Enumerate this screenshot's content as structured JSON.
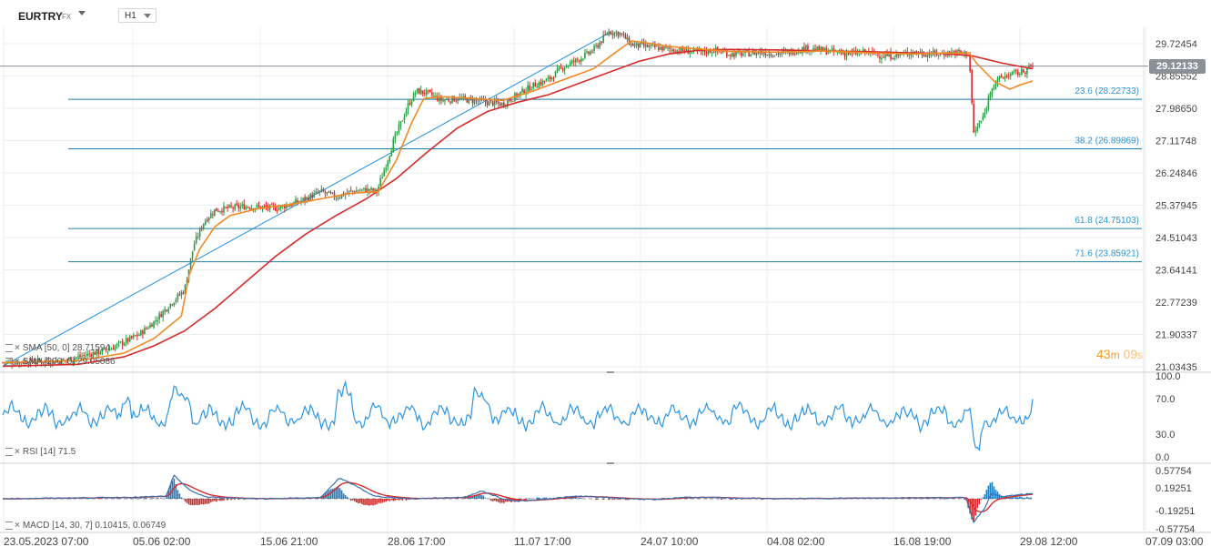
{
  "header": {
    "symbol": "EURTRY",
    "symbol_type": "FX",
    "timeframe": "H1"
  },
  "price_axis": {
    "ticks": [
      "29.72454",
      "28.85552",
      "27.98650",
      "27.11748",
      "26.24846",
      "25.37945",
      "24.51043",
      "23.64141",
      "22.77239",
      "21.90337",
      "21.03435"
    ],
    "current_price": "29.12133"
  },
  "time_axis": {
    "labels": [
      "23.05.2023 07:00",
      "05.06 02:00",
      "15.06 21:00",
      "28.06 17:00",
      "11.07 17:00",
      "24.07 10:00",
      "04.08 02:00",
      "16.08 19:00",
      "29.08 12:00",
      "07.09 03:00"
    ]
  },
  "countdown": {
    "minutes": "43",
    "min_unit": "m",
    "seconds": "09",
    "sec_unit": "s"
  },
  "legend": {
    "sma50": "SMA [50, 0] 28.71594",
    "sma200": "SMA [200, 0] 29.05086",
    "rsi": "RSI [14] 71.5",
    "macd": "MACD [14, 30, 7] 0.10415, 0.06749"
  },
  "rsi_axis": {
    "ticks": [
      "100.0",
      "70.0",
      "30.0",
      "0.0"
    ]
  },
  "macd_axis": {
    "ticks": [
      "0.57754",
      "0.19251",
      "-0.19251",
      "-0.57754"
    ]
  },
  "colors": {
    "up_candle": "#2a9d46",
    "down_candle": "#d62b2b",
    "sma50": "#f08a24",
    "sma200": "#d62b2b",
    "trendline": "#1e90e0",
    "fib": "#1f7ea8",
    "rsi": "#2b95e6",
    "macd_line": "#3a6fb0",
    "signal_line": "#d62b2b",
    "hist_pos": "#1f7ec2",
    "hist_neg": "#d62b2b"
  },
  "chart_data": [
    {
      "type": "candlestick",
      "title": "EURTRY H1",
      "ylim": [
        21.03435,
        29.72454
      ],
      "x_labels": [
        "23.05.2023 07:00",
        "05.06 02:00",
        "15.06 21:00",
        "28.06 17:00",
        "11.07 17:00",
        "24.07 10:00",
        "04.08 02:00",
        "16.08 19:00",
        "29.08 12:00",
        "07.09 03:00"
      ],
      "close_path": [
        [
          0,
          21.15
        ],
        [
          4,
          21.2
        ],
        [
          7,
          21.5
        ],
        [
          9,
          21.9
        ],
        [
          10,
          22.25
        ],
        [
          11,
          22.7
        ],
        [
          12,
          23.1
        ],
        [
          12.6,
          24.3
        ],
        [
          13.3,
          24.95
        ],
        [
          14,
          25.25
        ],
        [
          16,
          25.35
        ],
        [
          18,
          25.3
        ],
        [
          19,
          25.4
        ],
        [
          20,
          25.55
        ],
        [
          21,
          25.75
        ],
        [
          22,
          25.6
        ],
        [
          23,
          25.75
        ],
        [
          24,
          25.8
        ],
        [
          24.7,
          25.75
        ],
        [
          25.2,
          26.35
        ],
        [
          25.8,
          27.1
        ],
        [
          26.3,
          27.6
        ],
        [
          26.8,
          28.1
        ],
        [
          27.3,
          28.45
        ],
        [
          28,
          28.4
        ],
        [
          29,
          28.2
        ],
        [
          30,
          28.25
        ],
        [
          31,
          28.2
        ],
        [
          32,
          28.15
        ],
        [
          33,
          28.1
        ],
        [
          34,
          28.35
        ],
        [
          35,
          28.6
        ],
        [
          36,
          28.75
        ],
        [
          37,
          29.1
        ],
        [
          38,
          29.3
        ],
        [
          39,
          29.55
        ],
        [
          40,
          30.05
        ],
        [
          40.8,
          30.0
        ],
        [
          41.5,
          29.7
        ],
        [
          42.5,
          29.65
        ],
        [
          43.5,
          29.6
        ],
        [
          44.5,
          29.55
        ],
        [
          46,
          29.5
        ],
        [
          47,
          29.55
        ],
        [
          48,
          29.45
        ],
        [
          49,
          29.45
        ],
        [
          50,
          29.5
        ],
        [
          51,
          29.45
        ],
        [
          52,
          29.5
        ],
        [
          53,
          29.6
        ],
        [
          54,
          29.55
        ],
        [
          55,
          29.5
        ],
        [
          56,
          29.45
        ],
        [
          57,
          29.5
        ],
        [
          58,
          29.4
        ],
        [
          59,
          29.4
        ],
        [
          60,
          29.5
        ],
        [
          61,
          29.45
        ],
        [
          62,
          29.45
        ],
        [
          62.8,
          29.5
        ],
        [
          63.8,
          29.45
        ],
        [
          64.1,
          27.3
        ],
        [
          64.8,
          27.8
        ],
        [
          65.3,
          28.6
        ],
        [
          65.9,
          28.8
        ],
        [
          66.5,
          28.9
        ],
        [
          67.2,
          28.95
        ],
        [
          68,
          29.12
        ]
      ],
      "sma50": [
        [
          0,
          21.15
        ],
        [
          5,
          21.2
        ],
        [
          8,
          21.4
        ],
        [
          10,
          21.8
        ],
        [
          11.8,
          22.4
        ],
        [
          12.3,
          23.5
        ],
        [
          13,
          24.2
        ],
        [
          14,
          24.8
        ],
        [
          15,
          25.1
        ],
        [
          17,
          25.3
        ],
        [
          19,
          25.4
        ],
        [
          21,
          25.55
        ],
        [
          23,
          25.7
        ],
        [
          24.8,
          25.75
        ],
        [
          26,
          26.6
        ],
        [
          27,
          27.6
        ],
        [
          27.8,
          28.25
        ],
        [
          29,
          28.3
        ],
        [
          31,
          28.25
        ],
        [
          33,
          28.2
        ],
        [
          35,
          28.45
        ],
        [
          37,
          28.75
        ],
        [
          39,
          29.05
        ],
        [
          40.5,
          29.5
        ],
        [
          41.5,
          29.8
        ],
        [
          42.5,
          29.75
        ],
        [
          44,
          29.65
        ],
        [
          46,
          29.58
        ],
        [
          48,
          29.52
        ],
        [
          50,
          29.5
        ],
        [
          52,
          29.5
        ],
        [
          54,
          29.53
        ],
        [
          56,
          29.5
        ],
        [
          58,
          29.47
        ],
        [
          60,
          29.45
        ],
        [
          62,
          29.47
        ],
        [
          63.8,
          29.47
        ],
        [
          64.3,
          29.2
        ],
        [
          65.5,
          28.7
        ],
        [
          66.5,
          28.5
        ],
        [
          67.2,
          28.62
        ],
        [
          68,
          28.72
        ]
      ],
      "sma200": [
        [
          0,
          21.05
        ],
        [
          5,
          21.1
        ],
        [
          8,
          21.3
        ],
        [
          10,
          21.6
        ],
        [
          12,
          22.0
        ],
        [
          14,
          22.6
        ],
        [
          16,
          23.3
        ],
        [
          18,
          24.0
        ],
        [
          20,
          24.6
        ],
        [
          22,
          25.1
        ],
        [
          24,
          25.55
        ],
        [
          26,
          26.1
        ],
        [
          28,
          26.8
        ],
        [
          30,
          27.45
        ],
        [
          32,
          27.9
        ],
        [
          34,
          28.15
        ],
        [
          36,
          28.35
        ],
        [
          38,
          28.65
        ],
        [
          40,
          28.95
        ],
        [
          42,
          29.25
        ],
        [
          44,
          29.45
        ],
        [
          46,
          29.55
        ],
        [
          48,
          29.57
        ],
        [
          50,
          29.56
        ],
        [
          52,
          29.55
        ],
        [
          54,
          29.53
        ],
        [
          56,
          29.52
        ],
        [
          58,
          29.5
        ],
        [
          60,
          29.48
        ],
        [
          62,
          29.46
        ],
        [
          64,
          29.4
        ],
        [
          66,
          29.2
        ],
        [
          68,
          29.05
        ]
      ],
      "trendline": [
        [
          0,
          21.05
        ],
        [
          40.2,
          30.05
        ]
      ],
      "fib_levels": [
        {
          "label": "23.6 (28.22733)",
          "value": 28.22733
        },
        {
          "label": "38.2 (26.89869)",
          "value": 26.89869
        },
        {
          "label": "61.8 (24.75103)",
          "value": 24.75103
        },
        {
          "label": "71.6 (23.85921)",
          "value": 23.85921
        }
      ]
    },
    {
      "type": "line",
      "title": "RSI [14]",
      "ylim": [
        0,
        100
      ],
      "last": 71.5
    },
    {
      "type": "line",
      "title": "MACD [14, 30, 7]",
      "ylim": [
        -0.57754,
        0.57754
      ],
      "macd_last": 0.10415,
      "signal_last": 0.06749,
      "events": [
        [
          0,
          0
        ],
        [
          9,
          0.03
        ],
        [
          10.8,
          0.05
        ],
        [
          11.3,
          0.45
        ],
        [
          12.4,
          0.15
        ],
        [
          13.5,
          0.03
        ],
        [
          17,
          0
        ],
        [
          21,
          0.02
        ],
        [
          22.2,
          0.4
        ],
        [
          23.5,
          0.22
        ],
        [
          24.5,
          0.05
        ],
        [
          27,
          0
        ],
        [
          30.5,
          0.03
        ],
        [
          31.6,
          0.15
        ],
        [
          33,
          0
        ],
        [
          34,
          -0.05
        ],
        [
          38,
          0.05
        ],
        [
          43,
          -0.02
        ],
        [
          45,
          0.03
        ],
        [
          51,
          0.0
        ],
        [
          60,
          0.02
        ],
        [
          63.6,
          0.02
        ],
        [
          64.1,
          -0.45
        ],
        [
          64.9,
          -0.15
        ],
        [
          65.3,
          0.12
        ],
        [
          65.9,
          0.03
        ],
        [
          66.5,
          0.06
        ],
        [
          68,
          0.1
        ]
      ]
    }
  ]
}
